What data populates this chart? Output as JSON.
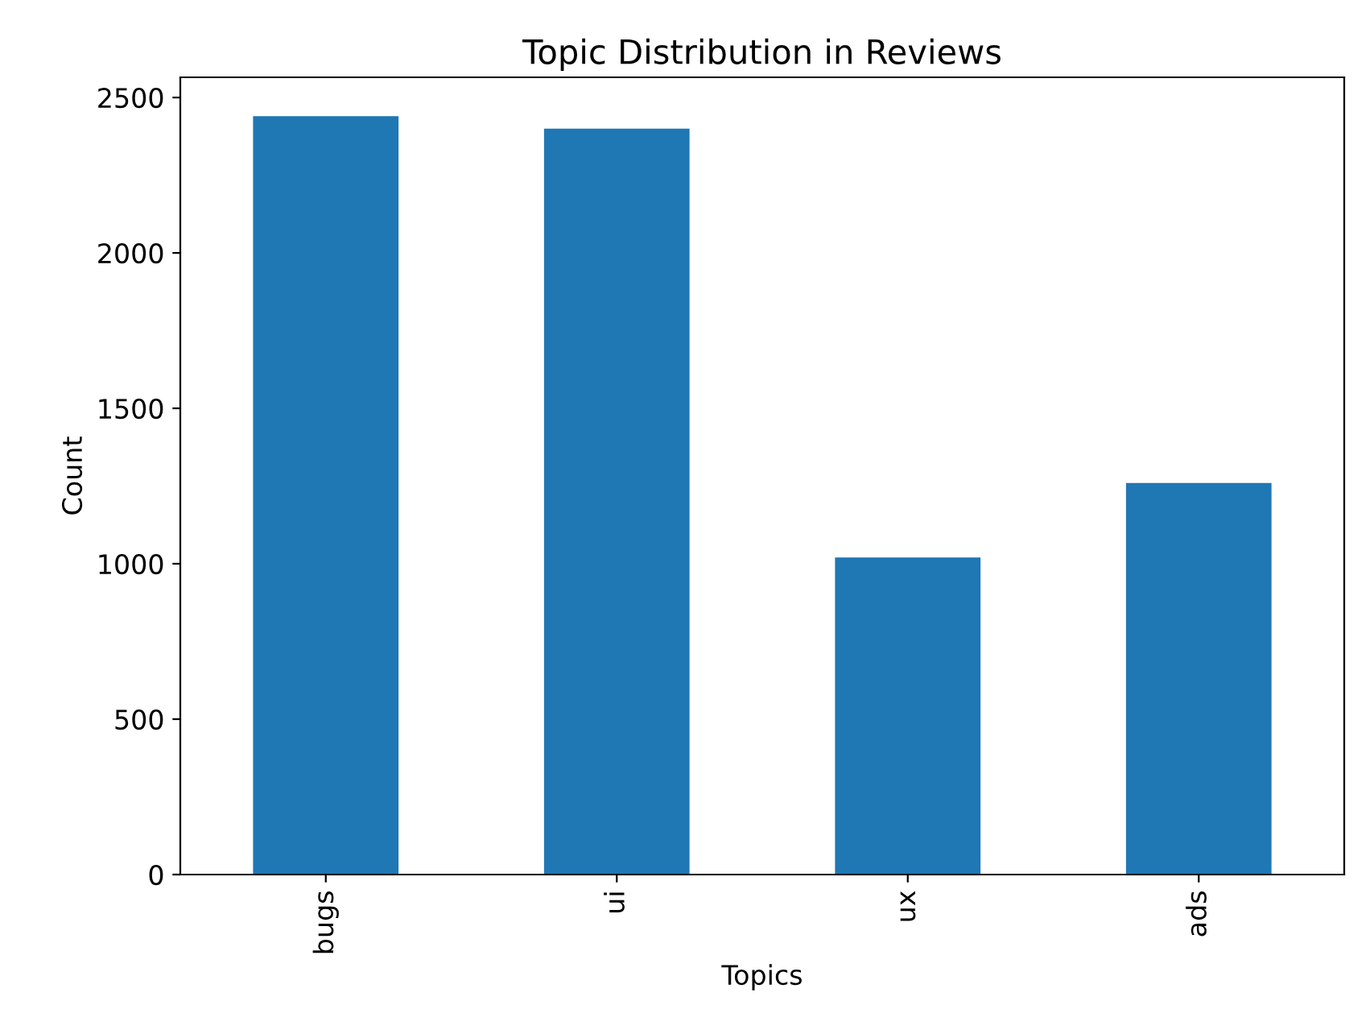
{
  "chart_data": {
    "type": "bar",
    "title": "Topic Distribution in Reviews",
    "xlabel": "Topics",
    "ylabel": "Count",
    "categories": [
      "bugs",
      "ui",
      "ux",
      "ads"
    ],
    "values": [
      2440,
      2400,
      1020,
      1260
    ],
    "color": "#1f77b4",
    "ylim": [
      0,
      2565
    ],
    "yticks": [
      0,
      500,
      1000,
      1500,
      2000,
      2500
    ],
    "grid": false,
    "legend": false
  }
}
